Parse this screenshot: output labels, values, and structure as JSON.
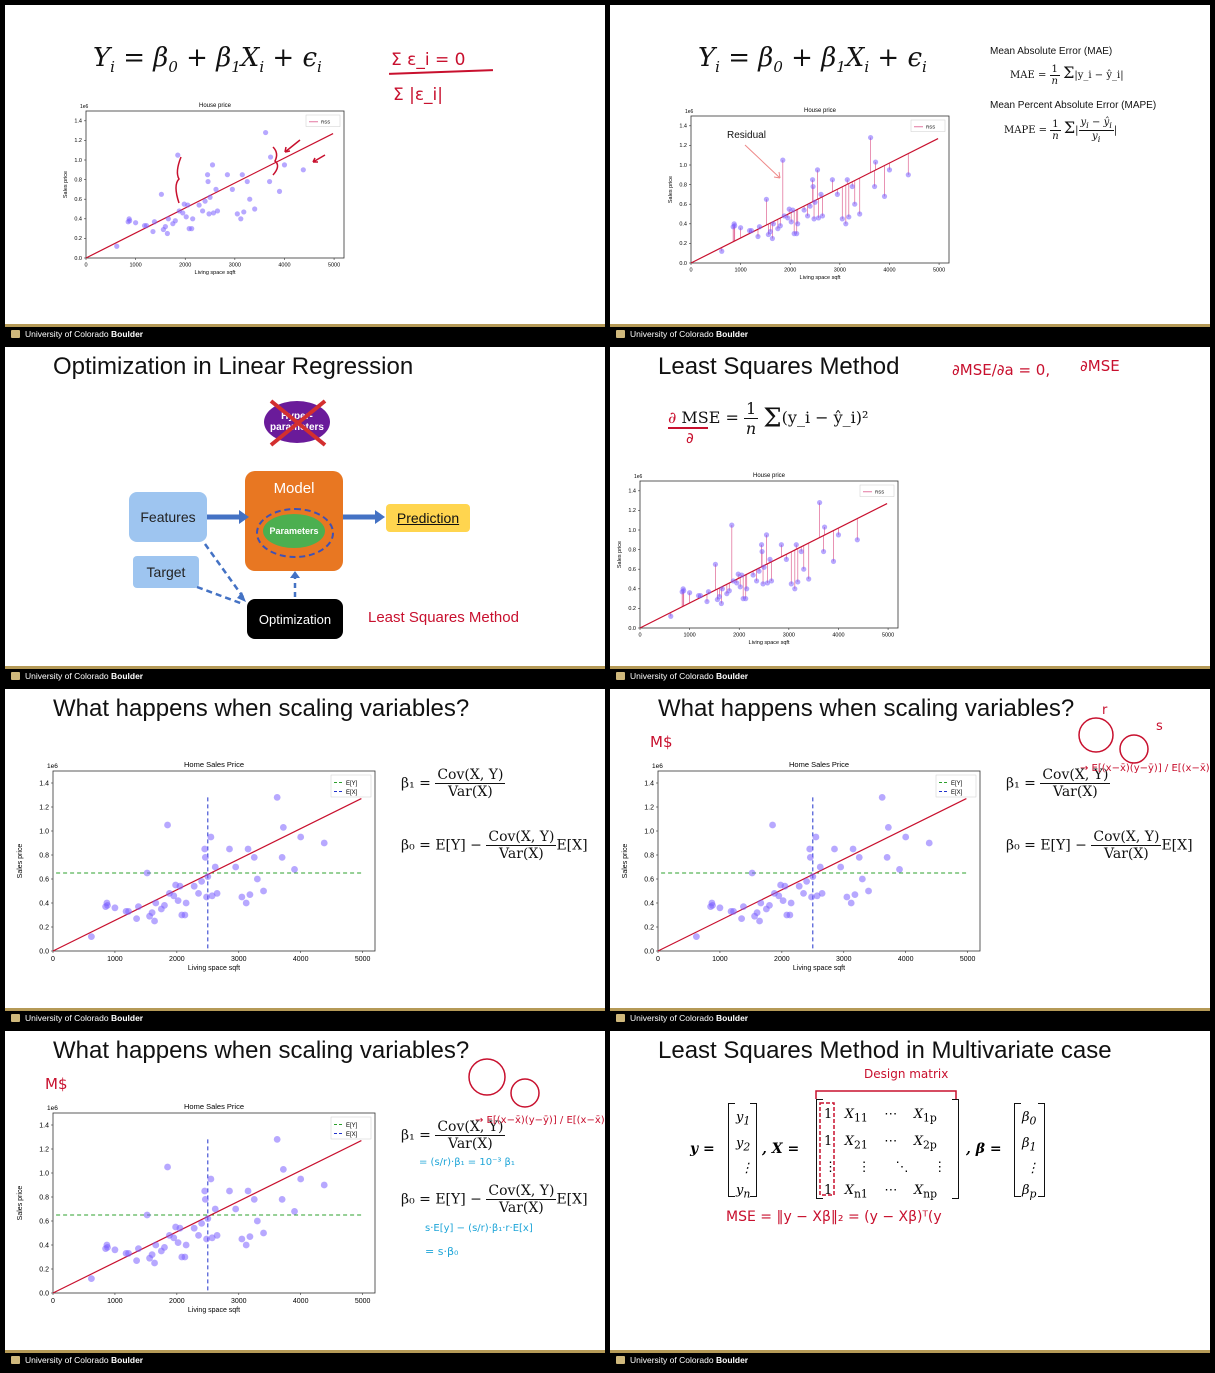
{
  "footer": {
    "university": "University of Colorado",
    "campus": "Boulder"
  },
  "slide1": {
    "equation": "Y_i = β_0 + β_1 X_i + ε_i",
    "notes": [
      "Σ ε_i = 0",
      "Σ |ε_i|"
    ]
  },
  "slide2": {
    "equation": "Y_i = β_0 + β_1 X_i + ε_i",
    "mae_title": "Mean Absolute Error (MAE)",
    "mape_title": "Mean Percent Absolute Error (MAPE)",
    "mae_label": "MAE",
    "mape_label": "MAPE",
    "annotation": "Residual"
  },
  "slide3": {
    "title": "Optimization in Linear Regression",
    "hyper": "Hyper-parameters",
    "model": "Model",
    "parameters": "Parameters",
    "features": "Features",
    "prediction": "Prediction",
    "target": "Target",
    "optimization": "Optimization",
    "method": "Least Squares Method"
  },
  "slide4": {
    "title": "Least Squares Method",
    "mse_label": "MSE",
    "note1": "∂MSE/∂a = 0,",
    "note2": "∂MSE"
  },
  "slide5": {
    "title": "What happens when scaling variables?"
  },
  "slide6": {
    "title": "What happens when scaling variables?",
    "unit_note": "M$",
    "note_b1": "→ E[(x−x̄)(y−ȳ)] / E[(x−x̄)²]",
    "note_r": "r",
    "note_s": "s"
  },
  "slide7": {
    "title": "What happens when scaling variables?",
    "unit_note": "M$",
    "note_b1": "→ E[(x−x̄)(y−ȳ)] / E[(x−x̄)²]",
    "note_scale": "= (s/r)·β₁ = 10⁻³ β₁",
    "note_b0a": "s·E[y] − (s/r)·β₁·r·E[x]",
    "note_b0b": "= s·β₀"
  },
  "slide8": {
    "title": "Least Squares Method in Multivariate case",
    "design_note": "Design matrix",
    "mse_note": "MSE = ‖y − Xβ‖₂  =  (y − Xβ)ᵀ(y"
  },
  "formulas": {
    "beta1": "β₁ =",
    "beta0": "β₀ = E[Y] −",
    "cov": "Cov(X, Y)",
    "var": "Var(X)",
    "ex": "E[X]",
    "mse_sum": "(y_i − ŷ_i)²",
    "mae_sum": "|y_i − ŷ_i|"
  },
  "charts": {
    "house": {
      "title": "House price",
      "xlabel": "Living space sqft",
      "ylabel": "Sales price",
      "exp": "1e6",
      "legend": [
        "RSS"
      ],
      "xticks": [
        "0",
        "1000",
        "2000",
        "3000",
        "4000",
        "5000"
      ],
      "yticks": [
        "0.0",
        "0.2",
        "0.4",
        "0.6",
        "0.8",
        "1.0",
        "1.2",
        "1.4"
      ]
    },
    "home": {
      "title": "Home Sales Price",
      "xlabel": "Living space sqft",
      "ylabel": "Sales price",
      "exp": "1e6",
      "legend": [
        "E[Y]",
        "E[X]"
      ],
      "xticks": [
        "0",
        "1000",
        "2000",
        "3000",
        "4000",
        "5000"
      ],
      "yticks": [
        "0.0",
        "0.2",
        "0.4",
        "0.6",
        "0.8",
        "1.0",
        "1.2",
        "1.4"
      ]
    }
  },
  "chart_data": {
    "type": "scatter",
    "title": "Home Sales Price",
    "xlabel": "Living space sqft",
    "ylabel": "Sales price",
    "xlim": [
      0,
      5200
    ],
    "ylim": [
      0,
      1.5
    ],
    "y_scale_exponent": "1e6",
    "points": [
      [
        620,
        0.12
      ],
      [
        850,
        0.37
      ],
      [
        870,
        0.4
      ],
      [
        880,
        0.38
      ],
      [
        1000,
        0.36
      ],
      [
        1180,
        0.33
      ],
      [
        1220,
        0.33
      ],
      [
        1350,
        0.27
      ],
      [
        1380,
        0.37
      ],
      [
        1520,
        0.65
      ],
      [
        1560,
        0.29
      ],
      [
        1600,
        0.32
      ],
      [
        1640,
        0.25
      ],
      [
        1660,
        0.4
      ],
      [
        1750,
        0.35
      ],
      [
        1800,
        0.38
      ],
      [
        1850,
        1.05
      ],
      [
        1880,
        0.48
      ],
      [
        1950,
        0.46
      ],
      [
        1980,
        0.55
      ],
      [
        2020,
        0.42
      ],
      [
        2050,
        0.54
      ],
      [
        2080,
        0.3
      ],
      [
        2130,
        0.3
      ],
      [
        2150,
        0.4
      ],
      [
        2280,
        0.54
      ],
      [
        2350,
        0.48
      ],
      [
        2400,
        0.58
      ],
      [
        2450,
        0.85
      ],
      [
        2460,
        0.78
      ],
      [
        2480,
        0.45
      ],
      [
        2500,
        0.62
      ],
      [
        2550,
        0.95
      ],
      [
        2570,
        0.46
      ],
      [
        2620,
        0.7
      ],
      [
        2650,
        0.48
      ],
      [
        2850,
        0.85
      ],
      [
        2950,
        0.7
      ],
      [
        3050,
        0.45
      ],
      [
        3120,
        0.4
      ],
      [
        3150,
        0.85
      ],
      [
        3180,
        0.47
      ],
      [
        3250,
        0.78
      ],
      [
        3300,
        0.6
      ],
      [
        3400,
        0.5
      ],
      [
        3620,
        1.28
      ],
      [
        3700,
        0.78
      ],
      [
        3720,
        1.03
      ],
      [
        3900,
        0.68
      ],
      [
        4000,
        0.95
      ],
      [
        4380,
        0.9
      ]
    ],
    "fit_line": {
      "x": [
        0,
        4980
      ],
      "y": [
        0.0,
        1.27
      ]
    },
    "mean_y": 0.65,
    "mean_x": 2500,
    "legend": [
      "E[Y]",
      "E[X]"
    ]
  }
}
